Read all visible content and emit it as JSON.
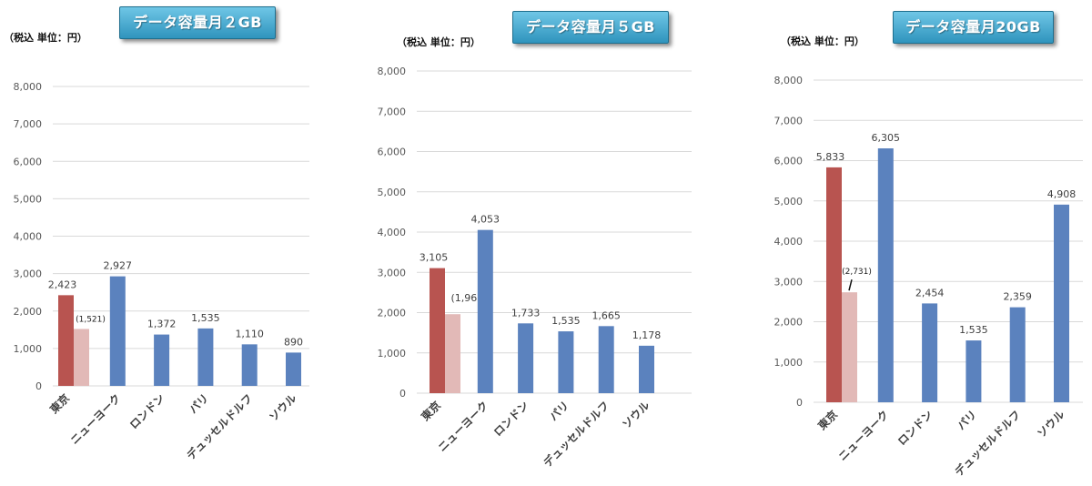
{
  "colors": {
    "tokyo": "#b85450",
    "tokyo_discount": "#e2b9b7",
    "other": "#5b82be",
    "grid": "#d9d9d9",
    "banner": "#3fa6cf"
  },
  "chart_data": [
    {
      "type": "bar",
      "title": "データ容量月２GB",
      "unit_label": "（税込 単位：円）",
      "categories": [
        "東京",
        "ニューヨーク",
        "ロンドン",
        "パリ",
        "デュッセルドルフ",
        "ソウル"
      ],
      "values": [
        2423,
        2927,
        1372,
        1535,
        1110,
        890
      ],
      "value_labels": [
        "2,423",
        "2,927",
        "1,372",
        "1,535",
        "1,110",
        "890"
      ],
      "tokyo_secondary": {
        "value": 1521,
        "label": "(1,521)"
      },
      "ylim": [
        0,
        8000
      ],
      "yticks": [
        0,
        1000,
        2000,
        3000,
        4000,
        5000,
        6000,
        7000,
        8000
      ],
      "ytick_labels": [
        "0",
        "1,000",
        "2,000",
        "3,000",
        "4,000",
        "5,000",
        "6,000",
        "7,000",
        "8,000"
      ]
    },
    {
      "type": "bar",
      "title": "データ容量月５GB",
      "unit_label": "（税込 単位：円）",
      "categories": [
        "東京",
        "ニューヨーク",
        "ロンドン",
        "パリ",
        "デュッセルドルフ",
        "ソウル"
      ],
      "values": [
        3105,
        4053,
        1733,
        1535,
        1665,
        1178
      ],
      "value_labels": [
        "3,105",
        "4,053",
        "1,733",
        "1,535",
        "1,665",
        "1,178"
      ],
      "tokyo_secondary": {
        "value": 1961,
        "label": "(1,961)"
      },
      "ylim": [
        0,
        8000
      ],
      "yticks": [
        0,
        1000,
        2000,
        3000,
        4000,
        5000,
        6000,
        7000,
        8000
      ],
      "ytick_labels": [
        "0",
        "1,000",
        "2,000",
        "3,000",
        "4,000",
        "5,000",
        "6,000",
        "7,000",
        "8,000"
      ]
    },
    {
      "type": "bar",
      "title": "データ容量月20GB",
      "unit_label": "（税込 単位：円）",
      "categories": [
        "東京",
        "ニューヨーク",
        "ロンドン",
        "パリ",
        "デュッセルドルフ",
        "ソウル"
      ],
      "values": [
        5833,
        6305,
        2454,
        1535,
        2359,
        4908
      ],
      "value_labels": [
        "5,833",
        "6,305",
        "2,454",
        "1,535",
        "2,359",
        "4,908"
      ],
      "tokyo_secondary": {
        "value": 2731,
        "label": "(2,731)"
      },
      "ylim": [
        0,
        8000
      ],
      "yticks": [
        0,
        1000,
        2000,
        3000,
        4000,
        5000,
        6000,
        7000,
        8000
      ],
      "ytick_labels": [
        "0",
        "1,000",
        "2,000",
        "3,000",
        "4,000",
        "5,000",
        "6,000",
        "7,000",
        "8,000"
      ]
    }
  ]
}
